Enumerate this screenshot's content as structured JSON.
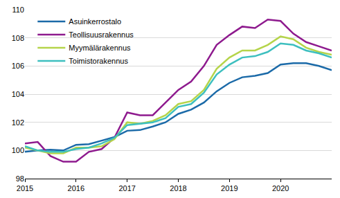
{
  "chart_data": {
    "type": "line",
    "categories": [
      "2015",
      null,
      null,
      null,
      "2016",
      null,
      null,
      null,
      "2017",
      null,
      null,
      null,
      "2018",
      null,
      null,
      null,
      "2019",
      null,
      null,
      null,
      "2020",
      null,
      null,
      null,
      null
    ],
    "series": [
      {
        "name": "Asuinkerrostalo",
        "color": "#1b6aa8",
        "values": [
          99.9,
          100.0,
          100.05,
          100.0,
          100.4,
          100.45,
          100.7,
          100.95,
          101.4,
          101.45,
          101.7,
          102.0,
          102.6,
          102.9,
          103.4,
          104.2,
          104.8,
          105.2,
          105.3,
          105.5,
          106.1,
          106.2,
          106.2,
          106.0,
          105.7
        ]
      },
      {
        "name": "Teollisuusrakennus",
        "color": "#8e1a8e",
        "values": [
          100.5,
          100.6,
          99.6,
          99.2,
          99.2,
          99.9,
          100.1,
          100.9,
          102.7,
          102.5,
          102.5,
          103.4,
          104.3,
          104.9,
          106.0,
          107.5,
          108.2,
          108.8,
          108.7,
          109.3,
          109.2,
          108.3,
          107.7,
          107.4,
          107.1
        ]
      },
      {
        "name": "Myymälärakennus",
        "color": "#b5d44a",
        "values": [
          100.2,
          100.0,
          99.8,
          99.8,
          100.2,
          100.2,
          100.3,
          100.8,
          102.0,
          101.9,
          102.1,
          102.5,
          103.3,
          103.5,
          104.3,
          105.8,
          106.6,
          107.1,
          107.1,
          107.5,
          108.1,
          107.9,
          107.3,
          107.0,
          106.8
        ]
      },
      {
        "name": "Toimistorakennus",
        "color": "#3dbfbf",
        "values": [
          100.3,
          100.0,
          99.9,
          99.9,
          100.1,
          100.2,
          100.5,
          100.9,
          101.8,
          101.9,
          102.0,
          102.3,
          103.1,
          103.3,
          104.1,
          105.4,
          106.1,
          106.6,
          106.7,
          107.0,
          107.6,
          107.5,
          107.1,
          106.9,
          106.6
        ]
      }
    ],
    "ylim": [
      98,
      110
    ],
    "yticks": [
      98,
      100,
      102,
      104,
      106,
      108,
      110
    ],
    "grid": true,
    "legend": "top-left"
  }
}
